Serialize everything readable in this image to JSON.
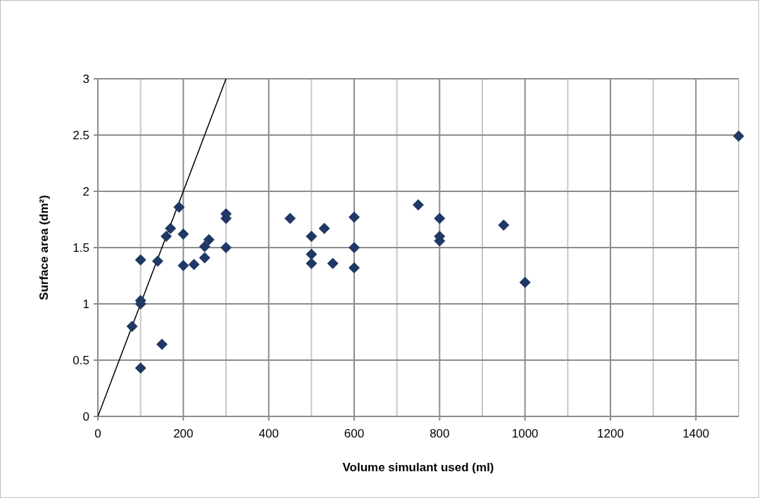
{
  "chart_data": {
    "type": "scatter",
    "xlabel": "Volume simulant used (ml)",
    "ylabel": "Surface area (dm²)",
    "xlim": [
      0,
      1500
    ],
    "ylim": [
      0,
      3
    ],
    "xticks": [
      0,
      200,
      400,
      600,
      800,
      1000,
      1200,
      1400
    ],
    "yticks": [
      0,
      0.5,
      1,
      1.5,
      2,
      2.5,
      3
    ],
    "grid": true,
    "series": [
      {
        "marker": "diamond",
        "color": "#1f3864",
        "x": [
          190,
          170,
          160,
          200,
          300,
          300,
          100,
          140,
          200,
          225,
          250,
          250,
          260,
          300,
          100,
          100,
          80,
          150,
          100,
          450,
          500,
          530,
          500,
          500,
          550,
          600,
          600,
          600,
          750,
          800,
          800,
          800,
          950,
          1000,
          1500
        ],
        "values": [
          1.86,
          1.67,
          1.6,
          1.62,
          1.8,
          1.76,
          1.39,
          1.38,
          1.34,
          1.35,
          1.41,
          1.51,
          1.57,
          1.5,
          1.03,
          1.0,
          0.8,
          0.64,
          0.43,
          1.76,
          1.6,
          1.67,
          1.44,
          1.36,
          1.36,
          1.77,
          1.5,
          1.32,
          1.88,
          1.76,
          1.6,
          1.56,
          1.7,
          1.19,
          2.49
        ]
      },
      {
        "type": "line",
        "color": "#000000",
        "x": [
          0,
          300
        ],
        "values": [
          0,
          3
        ]
      }
    ]
  }
}
